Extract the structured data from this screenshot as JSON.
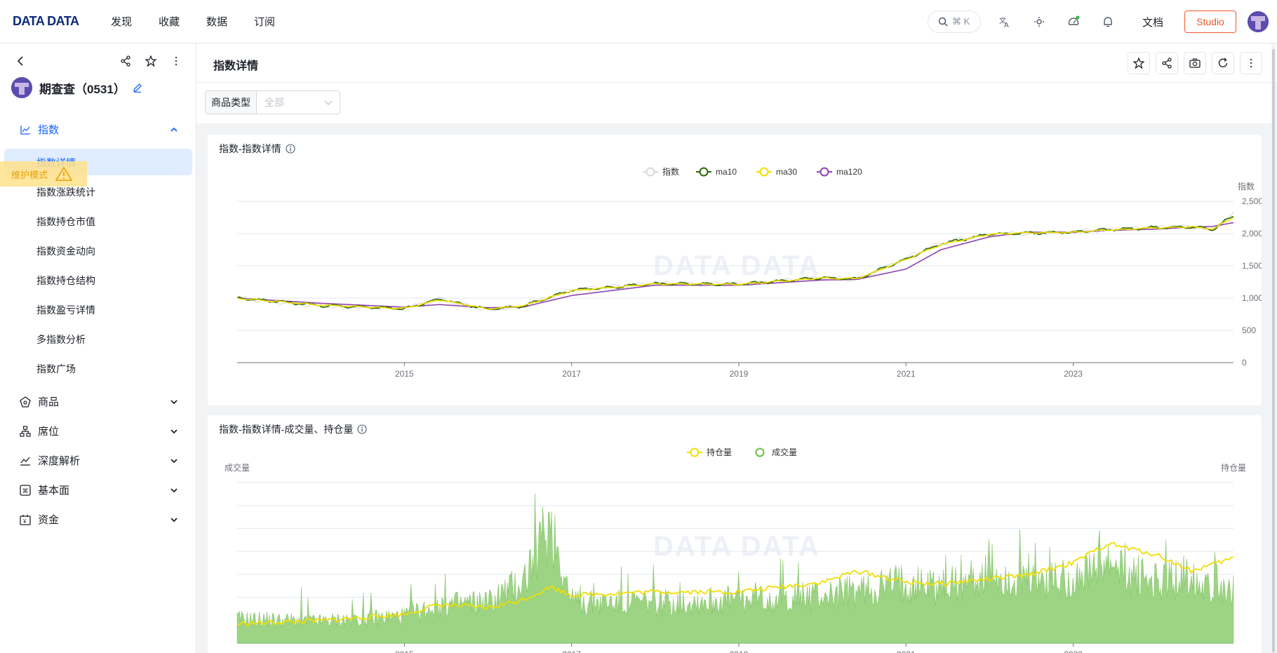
{
  "app": {
    "logo": "DATA DATA",
    "nav": [
      "发现",
      "收藏",
      "数据",
      "订阅"
    ],
    "search_hint": "⌘ K",
    "docs": "文档",
    "studio": "Studio"
  },
  "sidebar": {
    "title": "期查查（0531）",
    "groups": [
      {
        "label": "指数",
        "expanded": true,
        "icon": "line-chart-icon"
      },
      {
        "label": "商品",
        "expanded": false,
        "icon": "commodity-icon"
      },
      {
        "label": "席位",
        "expanded": false,
        "icon": "org-chart-icon"
      },
      {
        "label": "深度解析",
        "expanded": false,
        "icon": "trend-icon"
      },
      {
        "label": "基本面",
        "expanded": false,
        "icon": "command-icon"
      },
      {
        "label": "资金",
        "expanded": false,
        "icon": "calendar-money-icon"
      }
    ],
    "index_items": [
      "指数详情",
      "指数涨跌统计",
      "指数持仓市值",
      "指数资金动向",
      "指数持仓结构",
      "指数盈亏详情",
      "多指数分析",
      "指数广场"
    ],
    "active_item": "指数详情",
    "maintenance_badge": "维护模式"
  },
  "page": {
    "title": "指数详情",
    "filter_label": "商品类型",
    "filter_value": "全部",
    "watermark": "DATA DATA"
  },
  "chart_data": [
    {
      "type": "line",
      "title": "指数-指数详情",
      "legend": [
        "指数",
        "ma10",
        "ma30",
        "ma120"
      ],
      "legend_position": "top-center",
      "ylabel": "指数",
      "ylim": [
        0,
        2500
      ],
      "yticks": [
        "2,500",
        "2,000",
        "1,500",
        "1,000",
        "500",
        "0"
      ],
      "xticks": [
        "2015",
        "2017",
        "2019",
        "2021",
        "2023"
      ],
      "x": [
        "2013-01",
        "2014-01",
        "2015-01",
        "2015-06",
        "2016-01",
        "2016-06",
        "2017-01",
        "2018-01",
        "2019-01",
        "2020-01",
        "2020-06",
        "2021-01",
        "2021-06",
        "2022-01",
        "2022-06",
        "2023-01",
        "2023-06",
        "2024-01",
        "2024-06",
        "2024-09",
        "2024-12"
      ],
      "series": [
        {
          "name": "指数",
          "values": [
            1000,
            880,
            830,
            990,
            820,
            870,
            1130,
            1230,
            1210,
            1320,
            1290,
            1620,
            1850,
            2000,
            2000,
            2030,
            2060,
            2100,
            2100,
            2050,
            2300
          ]
        },
        {
          "name": "ma10",
          "values": [
            1000,
            885,
            835,
            985,
            825,
            875,
            1125,
            1225,
            1215,
            1315,
            1295,
            1610,
            1840,
            1995,
            2005,
            2025,
            2060,
            2095,
            2105,
            2060,
            2280
          ]
        },
        {
          "name": "ma30",
          "values": [
            1000,
            890,
            840,
            975,
            830,
            880,
            1115,
            1220,
            1215,
            1310,
            1300,
            1600,
            1830,
            1990,
            2010,
            2020,
            2055,
            2090,
            2105,
            2070,
            2250
          ]
        },
        {
          "name": "ma120",
          "values": [
            1000,
            920,
            860,
            900,
            850,
            860,
            1040,
            1200,
            1200,
            1280,
            1290,
            1450,
            1750,
            1950,
            2020,
            2020,
            2050,
            2070,
            2100,
            2110,
            2170
          ]
        }
      ]
    },
    {
      "type": "area",
      "title": "指数-指数详情-成交量、持仓量",
      "legend": [
        "持仓量",
        "成交量"
      ],
      "legend_position": "top-center",
      "ylabel_left": "成交量",
      "ylabel_right": "持仓量",
      "xticks": [
        "2015",
        "2017",
        "2019",
        "2021",
        "2023"
      ],
      "x": [
        "2013-01",
        "2014-01",
        "2015-01",
        "2015-06",
        "2016-01",
        "2016-06",
        "2016-10",
        "2017-01",
        "2018-01",
        "2019-01",
        "2020-01",
        "2020-06",
        "2021-01",
        "2021-06",
        "2022-01",
        "2022-06",
        "2023-01",
        "2023-06",
        "2024-01",
        "2024-06",
        "2024-12"
      ],
      "series": [
        {
          "name": "成交量",
          "values": [
            0.18,
            0.16,
            0.2,
            0.28,
            0.3,
            0.45,
            0.9,
            0.3,
            0.3,
            0.32,
            0.35,
            0.38,
            0.45,
            0.42,
            0.5,
            0.45,
            0.48,
            0.55,
            0.45,
            0.5,
            0.4
          ]
        },
        {
          "name": "持仓量",
          "values": [
            0.12,
            0.14,
            0.18,
            0.24,
            0.22,
            0.27,
            0.35,
            0.3,
            0.32,
            0.32,
            0.38,
            0.45,
            0.38,
            0.37,
            0.4,
            0.42,
            0.5,
            0.62,
            0.55,
            0.45,
            0.53
          ]
        }
      ],
      "colors": {
        "成交量": "#8ccc6e",
        "持仓量": "#f2de00"
      }
    }
  ],
  "colors": {
    "brand": "#0c2a7a",
    "accent": "#1664ff",
    "studio": "#f2572b",
    "ma10": "#2d6a0c",
    "ma30": "#f2de00",
    "ma120": "#8e44ad",
    "index": "#d8d8d8"
  }
}
